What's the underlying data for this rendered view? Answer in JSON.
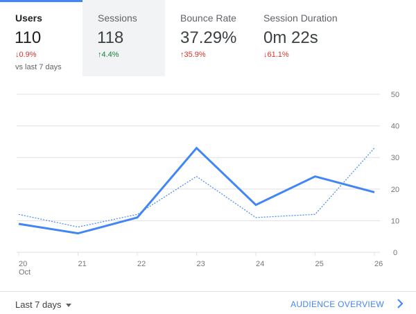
{
  "tabs": [
    {
      "label": "Users",
      "value": "110",
      "delta": "0.9%",
      "direction": "down",
      "compare": "vs last 7 days"
    },
    {
      "label": "Sessions",
      "value": "118",
      "delta": "4.4%",
      "direction": "up"
    },
    {
      "label": "Bounce Rate",
      "value": "37.29%",
      "delta": "35.9%",
      "direction": "up-bad"
    },
    {
      "label": "Session Duration",
      "value": "0m 22s",
      "delta": "61.1%",
      "direction": "down"
    }
  ],
  "arrows": {
    "down": "↓",
    "up": "↑"
  },
  "colors": {
    "accent": "#4285f4",
    "positive": "#188038",
    "negative": "#d93025",
    "grid": "#e0e0e0"
  },
  "footer": {
    "date_range": "Last 7 days",
    "overview_link": "AUDIENCE OVERVIEW"
  },
  "chart_data": {
    "type": "line",
    "categories": [
      "20",
      "21",
      "22",
      "23",
      "24",
      "25",
      "26"
    ],
    "x_sublabel": "Oct",
    "series": [
      {
        "values": [
          9,
          6,
          11,
          33,
          15,
          24,
          19
        ],
        "style": "solid"
      },
      {
        "values": [
          12,
          8,
          12,
          24,
          11,
          12,
          33
        ],
        "style": "dotted"
      }
    ],
    "ylim": [
      0,
      50
    ],
    "yticks": [
      0,
      10,
      20,
      30,
      40,
      50
    ],
    "y_axis_side": "right",
    "grid": true
  }
}
